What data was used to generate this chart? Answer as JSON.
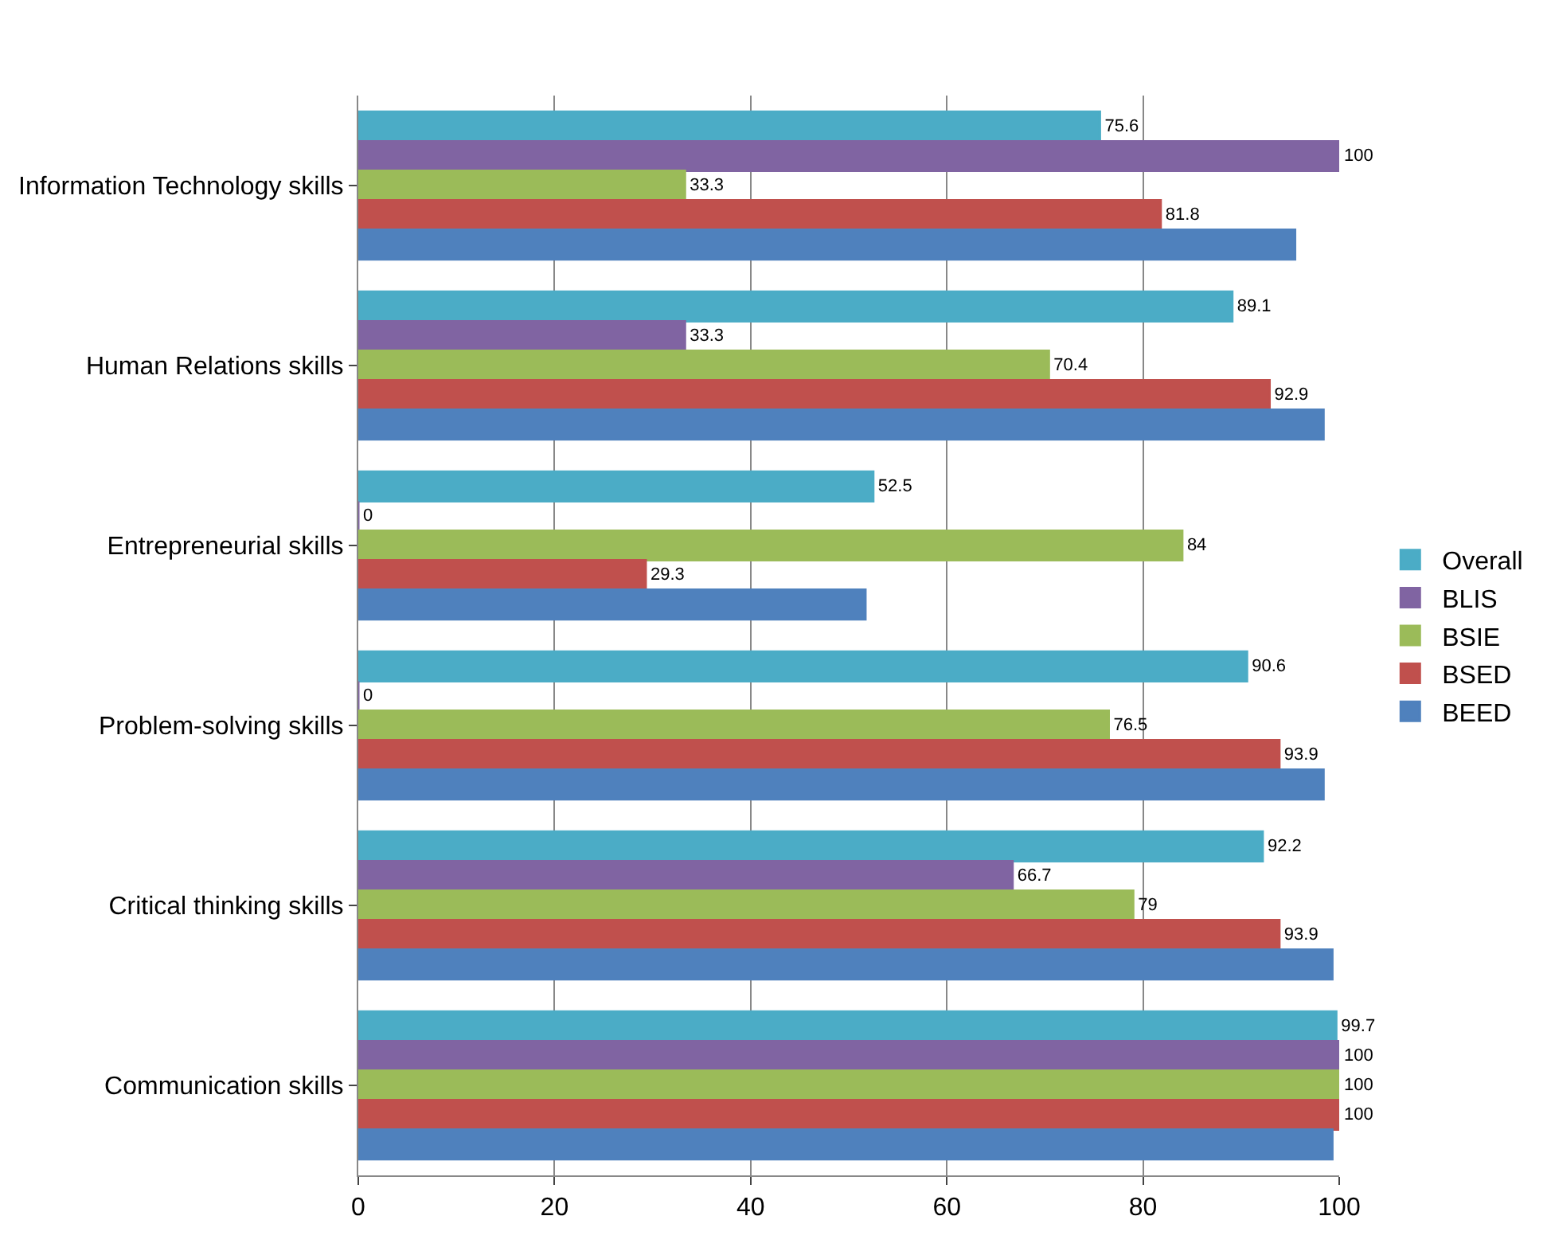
{
  "chart_data": {
    "type": "bar",
    "orientation": "horizontal",
    "categories": [
      "Information Technology skills",
      "Human Relations skills",
      "Entrepreneurial skills",
      "Problem-solving skills",
      "Critical thinking skills",
      "Communication skills"
    ],
    "series": [
      {
        "name": "Overall",
        "color": "#4bacc6",
        "values": [
          75.6,
          89.1,
          52.5,
          90.6,
          92.2,
          99.7
        ],
        "value_labels": [
          "75.6",
          "89.1",
          "52.5",
          "90.6",
          "92.2",
          "99.7"
        ]
      },
      {
        "name": "BLIS",
        "color": "#8064a2",
        "values": [
          100,
          33.3,
          0,
          0,
          66.7,
          100
        ],
        "value_labels": [
          "100",
          "33.3",
          "0",
          "0",
          "66.7",
          "100"
        ]
      },
      {
        "name": "BSIE",
        "color": "#9bbb59",
        "values": [
          33.3,
          70.4,
          84,
          76.5,
          79,
          100
        ],
        "value_labels": [
          "33.3",
          "70.4",
          "84",
          "76.5",
          "79",
          "100"
        ]
      },
      {
        "name": "BSED",
        "color": "#c0504d",
        "values": [
          81.8,
          92.9,
          29.3,
          93.9,
          93.9,
          100
        ],
        "value_labels": [
          "81.8",
          "92.9",
          "29.3",
          "93.9",
          "93.9",
          "100"
        ]
      },
      {
        "name": "BEED",
        "color": "#4f81bd",
        "values": [
          95.5,
          98.4,
          51.7,
          98.4,
          99.3,
          99.3
        ]
      }
    ],
    "xlim": [
      0,
      100
    ],
    "xticks": [
      0,
      20,
      40,
      60,
      80,
      100
    ],
    "grid": "x",
    "legend": "right"
  }
}
